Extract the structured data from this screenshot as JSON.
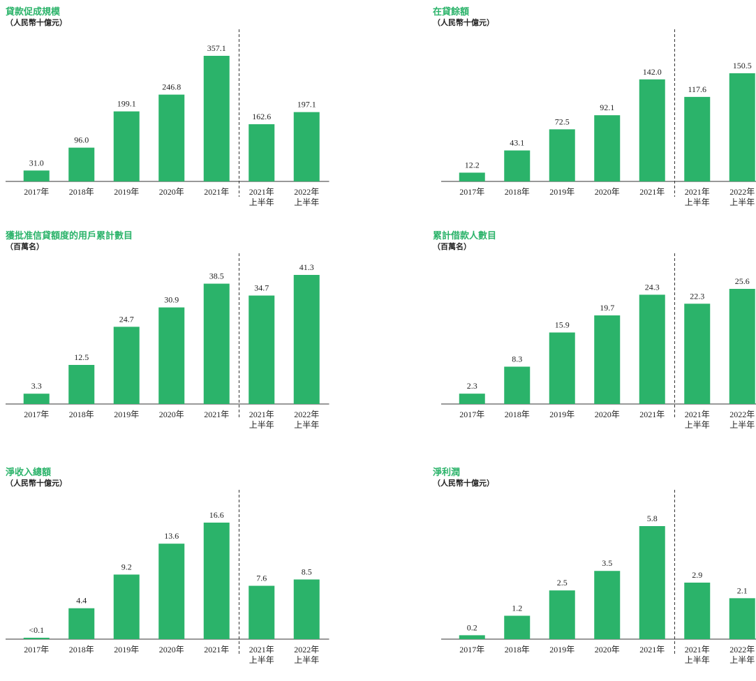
{
  "colors": {
    "bar": "#2bb36a",
    "title": "#2bb36a",
    "text": "#222222",
    "axis": "#333333"
  },
  "chart_data": [
    {
      "type": "bar",
      "title": "貸款促成規模",
      "unit": "（人民幣十億元）",
      "categories": [
        "2017年",
        "2018年",
        "2019年",
        "2020年",
        "2021年",
        "2021年\n上半年",
        "2022年\n上半年"
      ],
      "values": [
        31.0,
        96.0,
        199.1,
        246.8,
        357.1,
        162.6,
        197.1
      ],
      "value_labels": [
        "31.0",
        "96.0",
        "199.1",
        "246.8",
        "357.1",
        "162.6",
        "197.1"
      ],
      "divider_after_index": 4
    },
    {
      "type": "bar",
      "title": "在貸餘額",
      "unit": "（人民幣十億元）",
      "categories": [
        "2017年",
        "2018年",
        "2019年",
        "2020年",
        "2021年",
        "2021年\n上半年",
        "2022年\n上半年"
      ],
      "values": [
        12.2,
        43.1,
        72.5,
        92.1,
        142.0,
        117.6,
        150.5
      ],
      "value_labels": [
        "12.2",
        "43.1",
        "72.5",
        "92.1",
        "142.0",
        "117.6",
        "150.5"
      ],
      "divider_after_index": 4
    },
    {
      "type": "bar",
      "title": "獲批准信貸額度的用戶累計數目",
      "unit": "（百萬名）",
      "categories": [
        "2017年",
        "2018年",
        "2019年",
        "2020年",
        "2021年",
        "2021年\n上半年",
        "2022年\n上半年"
      ],
      "values": [
        3.3,
        12.5,
        24.7,
        30.9,
        38.5,
        34.7,
        41.3
      ],
      "value_labels": [
        "3.3",
        "12.5",
        "24.7",
        "30.9",
        "38.5",
        "34.7",
        "41.3"
      ],
      "divider_after_index": 4
    },
    {
      "type": "bar",
      "title": "累計借款人數目",
      "unit": "（百萬名）",
      "categories": [
        "2017年",
        "2018年",
        "2019年",
        "2020年",
        "2021年",
        "2021年\n上半年",
        "2022年\n上半年"
      ],
      "values": [
        2.3,
        8.3,
        15.9,
        19.7,
        24.3,
        22.3,
        25.6
      ],
      "value_labels": [
        "2.3",
        "8.3",
        "15.9",
        "19.7",
        "24.3",
        "22.3",
        "25.6"
      ],
      "divider_after_index": 4
    },
    {
      "type": "bar",
      "title": "淨收入總額",
      "unit": "（人民幣十億元）",
      "categories": [
        "2017年",
        "2018年",
        "2019年",
        "2020年",
        "2021年",
        "2021年\n上半年",
        "2022年\n上半年"
      ],
      "values": [
        0.05,
        4.4,
        9.2,
        13.6,
        16.6,
        7.6,
        8.5
      ],
      "value_labels": [
        "<0.1",
        "4.4",
        "9.2",
        "13.6",
        "16.6",
        "7.6",
        "8.5"
      ],
      "divider_after_index": 4
    },
    {
      "type": "bar",
      "title": "淨利潤",
      "unit": "（人民幣十億元）",
      "categories": [
        "2017年",
        "2018年",
        "2019年",
        "2020年",
        "2021年",
        "2021年\n上半年",
        "2022年\n上半年"
      ],
      "values": [
        0.2,
        1.2,
        2.5,
        3.5,
        5.8,
        2.9,
        2.1
      ],
      "value_labels": [
        "0.2",
        "1.2",
        "2.5",
        "3.5",
        "5.8",
        "2.9",
        "2.1"
      ],
      "divider_after_index": 4
    }
  ]
}
